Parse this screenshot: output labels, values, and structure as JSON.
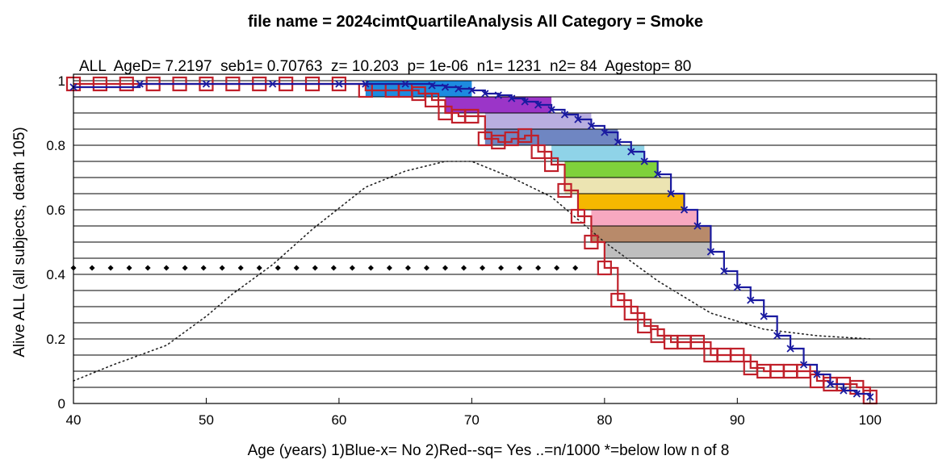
{
  "chart_data": {
    "type": "line",
    "title": "file name = 2024cimtQuartileAnalysis  All  Category = Smoke",
    "subtitle": "ALL  AgeD= 7.2197  seb1= 0.70763  z= 10.203  p= 1e-06  n1= 1231  n2= 84  Agestop= 80",
    "xlabel": "Age (years)  1)Blue-x= No  2)Red--sq= Yes   ..=n/1000   *=below low n of 8",
    "ylabel": "Alive ALL (all subjects, death 105)",
    "xlim": [
      40,
      105
    ],
    "ylim": [
      0,
      1.02
    ],
    "xticks": [
      40,
      50,
      60,
      70,
      80,
      90,
      100
    ],
    "yticks": [
      0,
      0.2,
      0.4,
      0.6,
      0.8,
      1
    ],
    "ytick_labels": [
      "0",
      "0.2",
      "0.4",
      "0.6",
      "0.8",
      "1"
    ],
    "grid": "horizontal lines every 0.05",
    "series": [
      {
        "name": "Blue-x= No",
        "color": "#1a1aa0",
        "marker": "x",
        "x": [
          40,
          45,
          50,
          55,
          60,
          62,
          65,
          67,
          68,
          69,
          70,
          71,
          72,
          73,
          74,
          75,
          76,
          77,
          78,
          79,
          80,
          81,
          82,
          83,
          84,
          85,
          86,
          87,
          88,
          89,
          90,
          91,
          92,
          93,
          94,
          95,
          96,
          97,
          98,
          99,
          100
        ],
        "y": [
          0.98,
          0.99,
          0.99,
          0.99,
          0.99,
          0.99,
          0.99,
          0.985,
          0.98,
          0.975,
          0.97,
          0.96,
          0.955,
          0.945,
          0.935,
          0.925,
          0.91,
          0.895,
          0.88,
          0.86,
          0.84,
          0.81,
          0.78,
          0.75,
          0.71,
          0.65,
          0.6,
          0.55,
          0.47,
          0.41,
          0.36,
          0.32,
          0.27,
          0.21,
          0.17,
          0.12,
          0.09,
          0.06,
          0.04,
          0.03,
          0.02
        ]
      },
      {
        "name": "Red--sq= Yes",
        "color": "#c0202a",
        "marker": "square",
        "x": [
          40,
          42,
          44,
          46,
          48,
          50,
          52,
          54,
          56,
          58,
          60,
          62,
          64,
          65,
          66,
          67,
          68,
          69,
          70,
          71,
          72,
          73,
          74,
          75,
          76,
          77,
          78,
          79,
          80,
          81,
          82,
          83,
          84,
          85,
          86,
          87,
          88,
          89,
          90,
          91,
          92,
          93,
          94,
          95,
          96,
          97,
          98,
          99,
          100
        ],
        "y": [
          0.99,
          0.99,
          0.99,
          0.99,
          0.99,
          0.99,
          0.99,
          0.99,
          0.99,
          0.99,
          0.99,
          0.97,
          0.97,
          0.97,
          0.96,
          0.94,
          0.9,
          0.89,
          0.89,
          0.82,
          0.81,
          0.82,
          0.83,
          0.78,
          0.74,
          0.66,
          0.58,
          0.5,
          0.42,
          0.32,
          0.28,
          0.24,
          0.21,
          0.19,
          0.19,
          0.19,
          0.15,
          0.15,
          0.15,
          0.11,
          0.1,
          0.1,
          0.1,
          0.1,
          0.07,
          0.06,
          0.06,
          0.05,
          0.02
        ]
      },
      {
        "name": "..=n/1000",
        "color": "#222222",
        "style": "dotted",
        "x": [
          40,
          43,
          47,
          50,
          52,
          55,
          58,
          62,
          65,
          68,
          70,
          73,
          76,
          80,
          84,
          88,
          92,
          96,
          100
        ],
        "y": [
          0.07,
          0.12,
          0.18,
          0.27,
          0.34,
          0.43,
          0.54,
          0.67,
          0.72,
          0.75,
          0.75,
          0.7,
          0.64,
          0.5,
          0.38,
          0.28,
          0.23,
          0.21,
          0.2
        ]
      },
      {
        "name": "*=below low n of 8",
        "color": "#000000",
        "style": "diamond-markers",
        "x_start": 40,
        "x_end": 79,
        "y": 0.42
      }
    ],
    "bands": [
      {
        "lower": 0.95,
        "upper": 1.0,
        "color": "#1d8be0"
      },
      {
        "lower": 0.9,
        "upper": 0.95,
        "color": "#9b35c8"
      },
      {
        "lower": 0.85,
        "upper": 0.9,
        "color": "#b9aee0"
      },
      {
        "lower": 0.8,
        "upper": 0.85,
        "color": "#6f86c2"
      },
      {
        "lower": 0.75,
        "upper": 0.8,
        "color": "#8fd3e8"
      },
      {
        "lower": 0.7,
        "upper": 0.75,
        "color": "#7fd13b"
      },
      {
        "lower": 0.65,
        "upper": 0.7,
        "color": "#ece4b2"
      },
      {
        "lower": 0.6,
        "upper": 0.65,
        "color": "#f5b800"
      },
      {
        "lower": 0.55,
        "upper": 0.6,
        "color": "#f7a8c0"
      },
      {
        "lower": 0.5,
        "upper": 0.55,
        "color": "#b88a6a"
      },
      {
        "lower": 0.45,
        "upper": 0.5,
        "color": "#bebebe"
      }
    ]
  }
}
